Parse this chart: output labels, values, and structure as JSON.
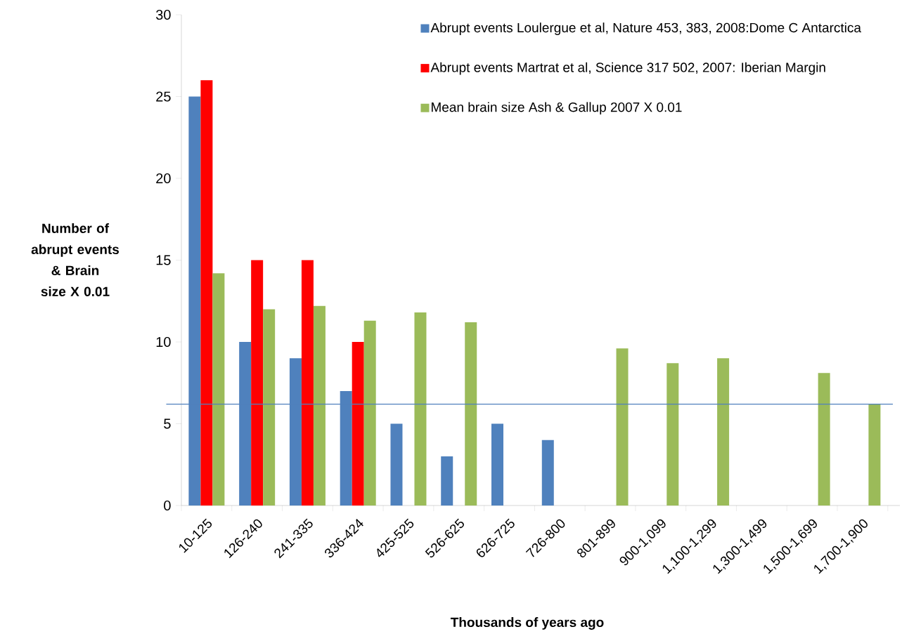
{
  "chart_data": {
    "type": "bar",
    "xlabel": "Thousands of years ago",
    "ylabel": "Number of abrupt events & Brain size X 0.01",
    "categories": [
      "10-125",
      "126-240",
      "241-335",
      "336-424",
      "425-525",
      "526-625",
      "626-725",
      "726-800",
      "801-899",
      "900-1,099",
      "1,100-1,299",
      "1,300-1,499",
      "1,500-1,699",
      "1,700-1,900"
    ],
    "series": [
      {
        "name": "Abrupt events Loulergue et al, Nature 453, 383, 2008:Dome C Antarctica",
        "color": "#4f81bd",
        "values": [
          25,
          10,
          9,
          7,
          5,
          3,
          5,
          4,
          null,
          null,
          null,
          null,
          null,
          null
        ]
      },
      {
        "name": "Abrupt events Martrat et al, Science 317 502, 2007: Iberian Margin",
        "color": "#ff0000",
        "values": [
          26,
          15,
          15,
          10,
          null,
          null,
          null,
          null,
          null,
          null,
          null,
          null,
          null,
          null
        ]
      },
      {
        "name": "Mean brain size Ash & Gallup 2007 X 0.01",
        "color": "#9bbb59",
        "values": [
          14.2,
          12.0,
          12.2,
          11.3,
          11.8,
          11.2,
          null,
          null,
          9.6,
          8.7,
          9.0,
          null,
          8.1,
          6.2
        ]
      }
    ],
    "ylim": [
      0,
      30
    ],
    "yticks": [
      0,
      5,
      10,
      15,
      20,
      25,
      30
    ],
    "ref_lines": [
      {
        "axis": "y",
        "value": 6.2,
        "color": "#4f81bd"
      }
    ],
    "legend": "top right",
    "grid": false
  }
}
